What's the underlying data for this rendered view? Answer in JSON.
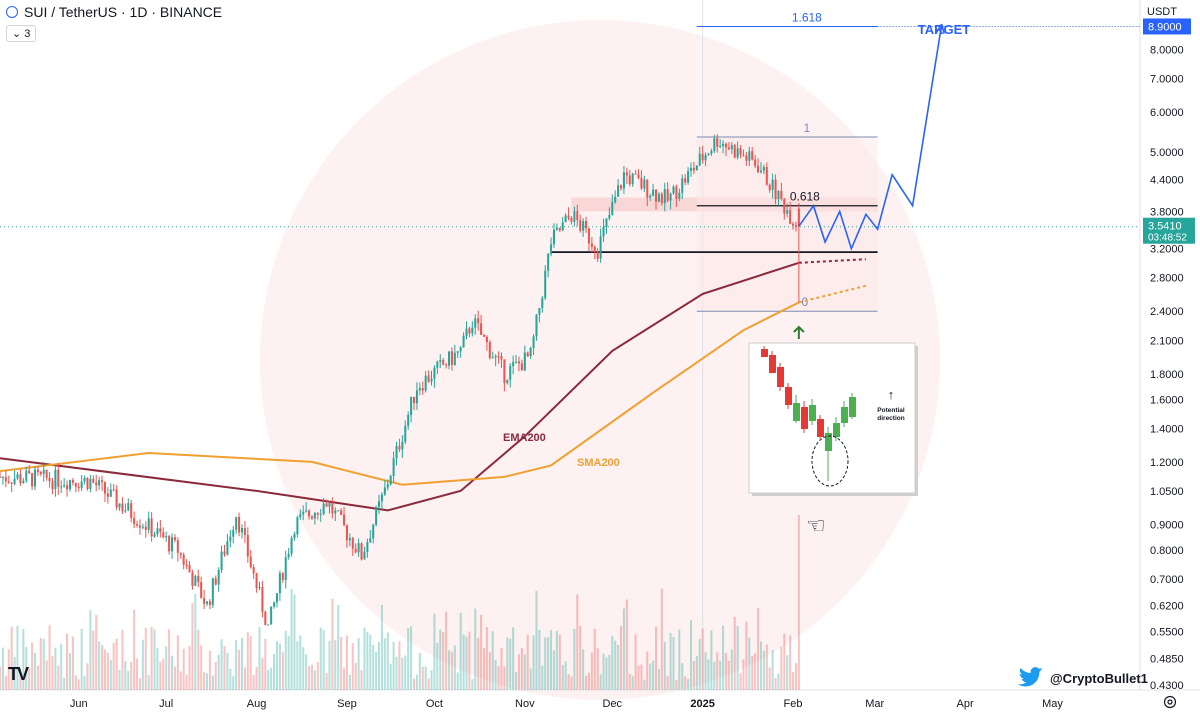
{
  "header": {
    "symbol_line": "SUI / TetherUS · 1D · BINANCE",
    "indicator_count": "3"
  },
  "axis": {
    "currency": "USDT"
  },
  "price_axis_labels": [
    "8.0000",
    "7.0000",
    "6.0000",
    "5.0000",
    "4.4000",
    "3.8000",
    "3.2000",
    "2.8000",
    "2.4000",
    "2.1000",
    "1.8000",
    "1.6000",
    "1.4000",
    "1.2000",
    "1.0500",
    "0.9000",
    "0.8000",
    "0.7000",
    "0.6200",
    "0.5500",
    "0.4850",
    "0.4300"
  ],
  "current_price": {
    "value": "3.5410",
    "countdown": "03:48:52",
    "color": "#26a69a"
  },
  "target_price": {
    "value": "8.9000",
    "color": "#2962ff"
  },
  "time_axis_labels": [
    "Jun",
    "Jul",
    "Aug",
    "Sep",
    "Oct",
    "Nov",
    "Dec",
    "2025",
    "Feb",
    "Mar",
    "Apr",
    "May"
  ],
  "annotations": {
    "target": "TARGET",
    "fib_1618": "1.618",
    "fib_1": "1",
    "fib_0618": "0.618",
    "fib_0": "0",
    "ema_label": "EMA200",
    "sma_label": "SMA200",
    "inset_caption": "Potential direction"
  },
  "watermark": {
    "handle": "@CryptoBullet1",
    "logo": "TV"
  },
  "colors": {
    "up": "#26a69a",
    "down": "#ef5350",
    "ema": "#8b2a3a",
    "sma": "#f0a030",
    "fib": "#2962ff",
    "projection": "#2962ff"
  },
  "chart_data": {
    "type": "candlestick",
    "symbol": "SUI / TetherUS",
    "timeframe": "1D",
    "exchange": "BINANCE",
    "y_scale": "log",
    "ylim": [
      0.42,
      9.6
    ],
    "x_range": [
      "2024-05-05",
      "2025-05-31"
    ],
    "key_prices": [
      {
        "date": "2024-05-05",
        "price": 1.12
      },
      {
        "date": "2024-06-05",
        "price": 1.1
      },
      {
        "date": "2024-07-05",
        "price": 0.8
      },
      {
        "date": "2024-07-15",
        "price": 0.62
      },
      {
        "date": "2024-07-25",
        "price": 0.95
      },
      {
        "date": "2024-08-05",
        "price": 0.56
      },
      {
        "date": "2024-08-14",
        "price": 0.9
      },
      {
        "date": "2024-08-25",
        "price": 1.0
      },
      {
        "date": "2024-09-06",
        "price": 0.78
      },
      {
        "date": "2024-09-14",
        "price": 1.05
      },
      {
        "date": "2024-09-25",
        "price": 1.7
      },
      {
        "date": "2024-10-10",
        "price": 2.0
      },
      {
        "date": "2024-10-14",
        "price": 2.3
      },
      {
        "date": "2024-10-25",
        "price": 1.8
      },
      {
        "date": "2024-11-03",
        "price": 1.95
      },
      {
        "date": "2024-11-10",
        "price": 3.3
      },
      {
        "date": "2024-11-17",
        "price": 3.75
      },
      {
        "date": "2024-11-26",
        "price": 3.2
      },
      {
        "date": "2024-12-05",
        "price": 4.5
      },
      {
        "date": "2024-12-20",
        "price": 4.0
      },
      {
        "date": "2025-01-06",
        "price": 5.3
      },
      {
        "date": "2025-01-20",
        "price": 4.7
      },
      {
        "date": "2025-01-29",
        "price": 3.9
      },
      {
        "date": "2025-02-03",
        "price": 3.54
      }
    ],
    "ema200": [
      {
        "date": "2024-05-05",
        "price": 1.22
      },
      {
        "date": "2024-08-01",
        "price": 1.05
      },
      {
        "date": "2024-09-15",
        "price": 0.96
      },
      {
        "date": "2024-10-10",
        "price": 1.05
      },
      {
        "date": "2024-11-01",
        "price": 1.35
      },
      {
        "date": "2024-12-01",
        "price": 2.0
      },
      {
        "date": "2025-01-01",
        "price": 2.6
      },
      {
        "date": "2025-02-03",
        "price": 3.0
      },
      {
        "date": "2025-02-26",
        "price": 3.05
      }
    ],
    "sma200": [
      {
        "date": "2024-05-05",
        "price": 1.15
      },
      {
        "date": "2024-06-25",
        "price": 1.25
      },
      {
        "date": "2024-08-20",
        "price": 1.2
      },
      {
        "date": "2024-09-20",
        "price": 1.08
      },
      {
        "date": "2024-10-25",
        "price": 1.12
      },
      {
        "date": "2024-11-10",
        "price": 1.18
      },
      {
        "date": "2024-12-15",
        "price": 1.65
      },
      {
        "date": "2025-01-15",
        "price": 2.2
      },
      {
        "date": "2025-02-03",
        "price": 2.5
      },
      {
        "date": "2025-02-26",
        "price": 2.7
      }
    ],
    "fib_levels": [
      {
        "label": "1.618",
        "price": 8.9
      },
      {
        "label": "1",
        "price": 5.35
      },
      {
        "label": "0.618",
        "price": 3.9
      },
      {
        "label": "0",
        "price": 2.4
      }
    ],
    "support_line": 3.15,
    "resistance_zone": [
      3.8,
      4.05
    ],
    "projection_path": [
      {
        "date": "2025-02-03",
        "price": 3.55
      },
      {
        "date": "2025-02-08",
        "price": 3.9
      },
      {
        "date": "2025-02-12",
        "price": 3.3
      },
      {
        "date": "2025-02-17",
        "price": 3.8
      },
      {
        "date": "2025-02-21",
        "price": 3.2
      },
      {
        "date": "2025-02-26",
        "price": 3.75
      },
      {
        "date": "2025-03-02",
        "price": 3.5
      },
      {
        "date": "2025-03-07",
        "price": 4.5
      },
      {
        "date": "2025-03-14",
        "price": 3.9
      },
      {
        "date": "2025-03-24",
        "price": 9.0
      }
    ],
    "volume_spike_date": "2025-02-03"
  }
}
